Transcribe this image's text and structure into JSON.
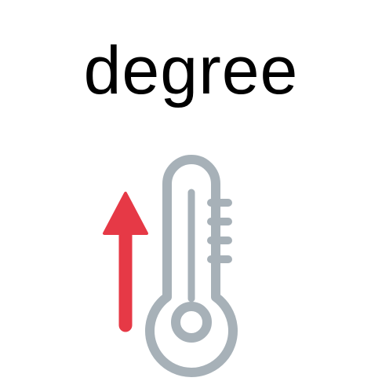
{
  "word": "degree",
  "icons": {
    "arrow": "up-arrow-icon",
    "thermometer": "thermometer-icon"
  },
  "colors": {
    "text": "#000000",
    "arrow": "#E63946",
    "thermometer": "#A7B1B8"
  }
}
